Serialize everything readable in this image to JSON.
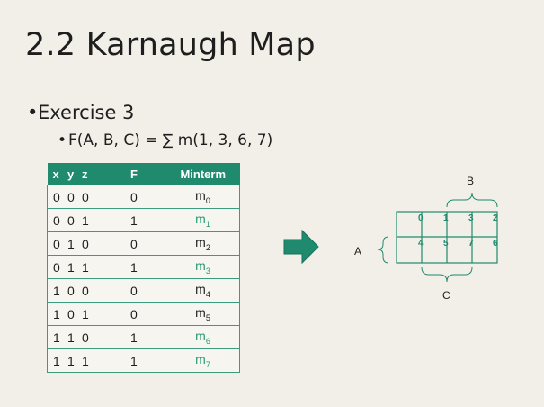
{
  "slide": {
    "title": "2.2 Karnaugh Map",
    "bullet1": "Exercise 3",
    "bullet2": "F(A, B, C) = ∑ m(1, 3, 6, 7)"
  },
  "table": {
    "headers": [
      "x",
      "y",
      "z",
      "F",
      "Minterm"
    ],
    "rows": [
      {
        "x": "0",
        "y": "0",
        "z": "0",
        "f": "0",
        "m": "m",
        "sub": "0"
      },
      {
        "x": "0",
        "y": "0",
        "z": "1",
        "f": "1",
        "m": "m",
        "sub": "1"
      },
      {
        "x": "0",
        "y": "1",
        "z": "0",
        "f": "0",
        "m": "m",
        "sub": "2"
      },
      {
        "x": "0",
        "y": "1",
        "z": "1",
        "f": "1",
        "m": "m",
        "sub": "3"
      },
      {
        "x": "1",
        "y": "0",
        "z": "0",
        "f": "0",
        "m": "m",
        "sub": "4"
      },
      {
        "x": "1",
        "y": "0",
        "z": "1",
        "f": "0",
        "m": "m",
        "sub": "5"
      },
      {
        "x": "1",
        "y": "1",
        "z": "0",
        "f": "1",
        "m": "m",
        "sub": "6"
      },
      {
        "x": "1",
        "y": "1",
        "z": "1",
        "f": "1",
        "m": "m",
        "sub": "7"
      }
    ]
  },
  "kmap": {
    "label_a": "A",
    "label_b": "B",
    "label_c": "C",
    "cells_row0": [
      "0",
      "1",
      "3",
      "2"
    ],
    "cells_row1": [
      "4",
      "5",
      "7",
      "6"
    ]
  },
  "colors": {
    "accent": "#1f8a6d",
    "highlight": "#2a9a74",
    "background": "#f1efe8"
  },
  "icons": {
    "arrow": "right-arrow-icon"
  }
}
